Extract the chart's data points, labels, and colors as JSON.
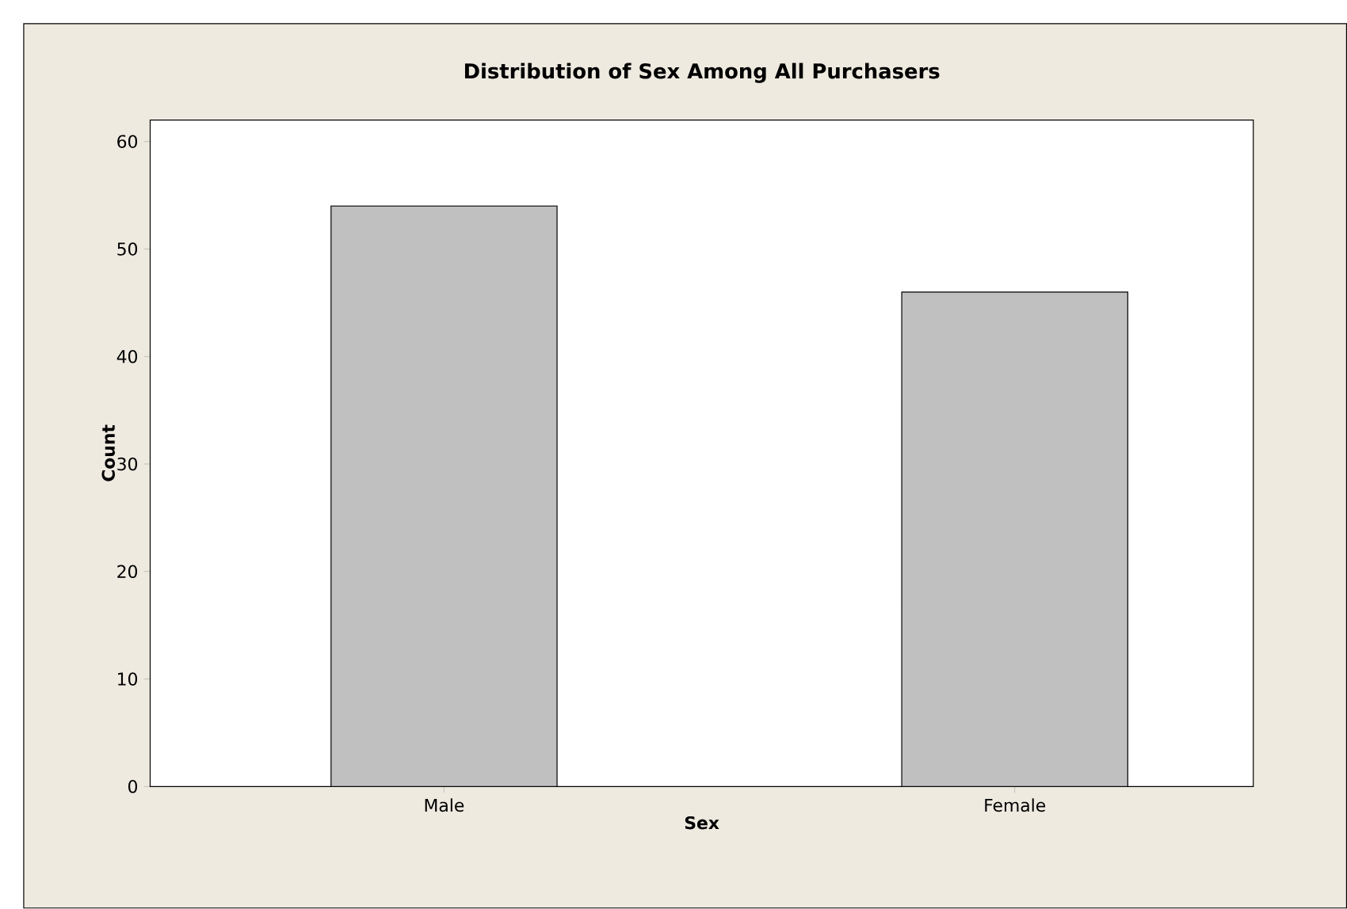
{
  "chart_data": {
    "type": "bar",
    "title": "Distribution of Sex Among All Purchasers",
    "xlabel": "Sex",
    "ylabel": "Count",
    "categories": [
      "Male",
      "Female"
    ],
    "values": [
      54,
      46
    ],
    "color": "#c0c0c0",
    "ylim": [
      0,
      62
    ],
    "yticks": [
      0,
      10,
      20,
      30,
      40,
      50,
      60
    ],
    "grid": false
  }
}
